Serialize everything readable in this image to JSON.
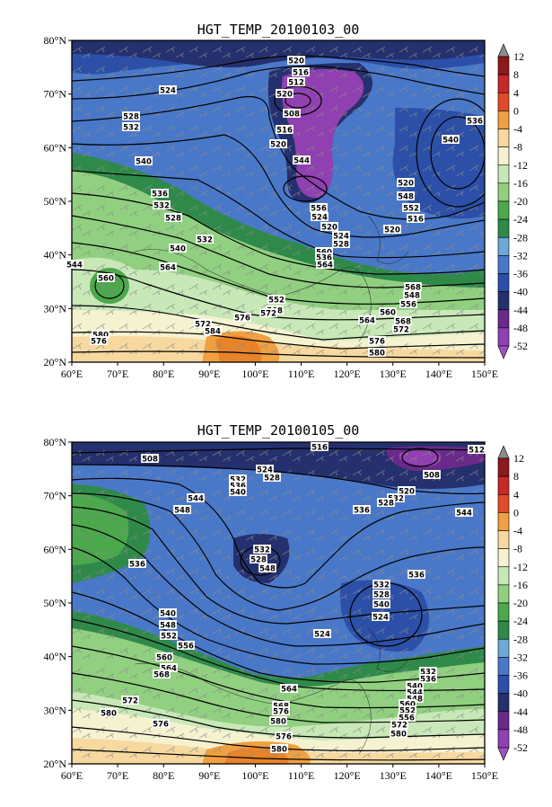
{
  "colorbar": {
    "labels": [
      "12",
      "8",
      "4",
      "0",
      "-4",
      "-8",
      "-12",
      "-16",
      "-20",
      "-24",
      "-28",
      "-32",
      "-36",
      "-40",
      "-44",
      "-48",
      "-52"
    ],
    "colors": [
      "#8c8c8c",
      "#8b1a1a",
      "#c82828",
      "#e34a2a",
      "#f0a040",
      "#f7d9a0",
      "#f5f2d0",
      "#c8e8b8",
      "#90d080",
      "#4ca84c",
      "#2f8a4a",
      "#6fa8d8",
      "#4a78c8",
      "#2c50a8",
      "#25306e",
      "#6a2a8a",
      "#9040b0",
      "#a050c0"
    ]
  },
  "panels": [
    {
      "title": "HGT_TEMP_20100103_00",
      "lat_labels": [
        "80°N",
        "70°N",
        "60°N",
        "50°N",
        "40°N",
        "30°N",
        "20°N"
      ],
      "lon_labels": [
        "60°E",
        "70°E",
        "80°E",
        "90°E",
        "100°E",
        "110°E",
        "120°E",
        "130°E",
        "140°E",
        "150°E"
      ],
      "contour_labels": [
        "520",
        "516",
        "512",
        "524",
        "520",
        "528",
        "532",
        "508",
        "536",
        "516",
        "520",
        "540",
        "540",
        "544",
        "520",
        "536",
        "548",
        "532",
        "552",
        "528",
        "556",
        "516",
        "524",
        "520",
        "520",
        "524",
        "528",
        "532",
        "560",
        "536",
        "540",
        "564",
        "544",
        "560",
        "564",
        "568",
        "548",
        "552",
        "556",
        "568",
        "560",
        "576",
        "572",
        "564",
        "572",
        "580",
        "568",
        "576",
        "584",
        "572",
        "576",
        "580"
      ]
    },
    {
      "title": "HGT_TEMP_20100105_00",
      "lat_labels": [
        "80°N",
        "70°N",
        "60°N",
        "50°N",
        "40°N",
        "30°N",
        "20°N"
      ],
      "lon_labels": [
        "60°E",
        "70°E",
        "80°E",
        "90°E",
        "100°E",
        "110°E",
        "120°E",
        "130°E",
        "140°E",
        "150°E"
      ],
      "contour_labels": [
        "516",
        "512",
        "508",
        "524",
        "528",
        "508",
        "532",
        "536",
        "540",
        "520",
        "544",
        "532",
        "528",
        "536",
        "548",
        "544",
        "536",
        "532",
        "528",
        "548",
        "540",
        "536",
        "532",
        "528",
        "540",
        "524",
        "548",
        "552",
        "524",
        "556",
        "560",
        "564",
        "532",
        "536",
        "540",
        "544",
        "548",
        "568",
        "560",
        "552",
        "556",
        "564",
        "572",
        "568",
        "572",
        "580",
        "576",
        "576",
        "580",
        "580",
        "576",
        "580"
      ]
    }
  ]
}
